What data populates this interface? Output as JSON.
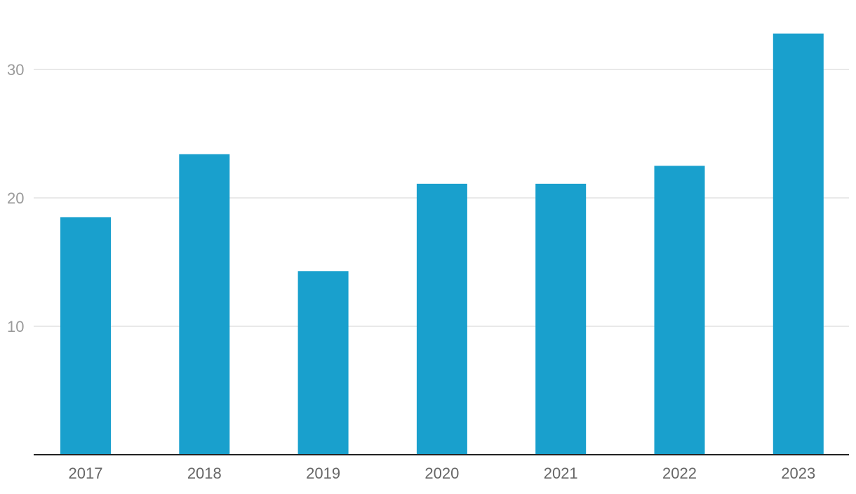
{
  "chart_data": {
    "type": "bar",
    "categories": [
      "2017",
      "2018",
      "2019",
      "2020",
      "2021",
      "2022",
      "2023"
    ],
    "values": [
      18.5,
      23.4,
      14.3,
      21.1,
      21.1,
      22.5,
      32.8
    ],
    "yticks": [
      "10",
      "20",
      "30"
    ],
    "ytick_values": [
      10,
      20,
      30
    ],
    "ylim": [
      0,
      35.5
    ],
    "grid": true,
    "bar_color": "#19a0cd"
  }
}
